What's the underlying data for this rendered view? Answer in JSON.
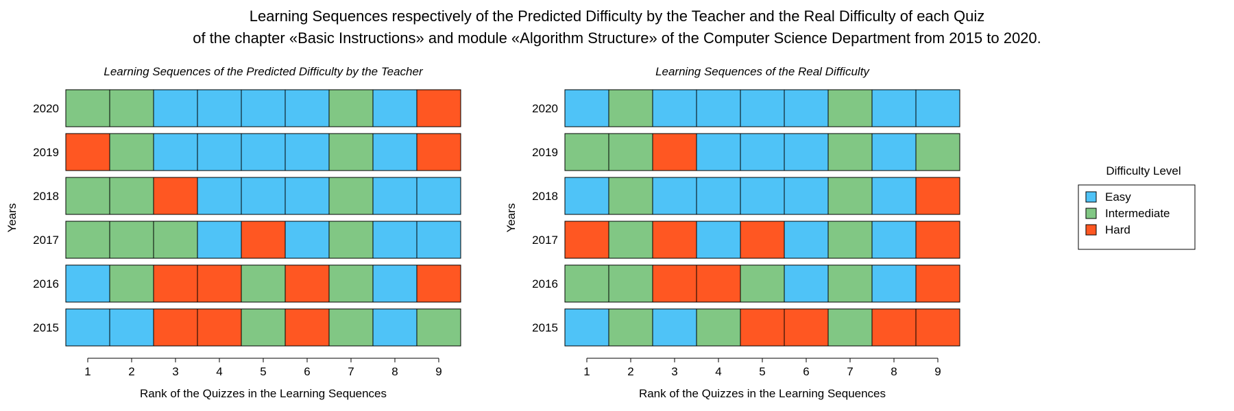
{
  "figure_title": [
    "Learning Sequences respectively of the Predicted Difficulty by the Teacher and the Real Difficulty of each Quiz",
    "of the chapter «Basic Instructions» and module «Algorithm Structure» of the Computer Science Department from 2015 to 2020."
  ],
  "legend": {
    "title": "Difficulty Level",
    "items": [
      {
        "label": "Easy",
        "color": "#4FC3F7"
      },
      {
        "label": "Intermediate",
        "color": "#81C784"
      },
      {
        "label": "Hard",
        "color": "#FF5722"
      }
    ]
  },
  "chart_data": [
    {
      "type": "heatmap",
      "title": "Learning Sequences of the Predicted Difficulty by the Teacher",
      "xlabel": "Rank of the Quizzes in the Learning Sequences",
      "ylabel": "Years",
      "x": [
        1,
        2,
        3,
        4,
        5,
        6,
        7,
        8,
        9
      ],
      "y": [
        "2020",
        "2019",
        "2018",
        "2017",
        "2016",
        "2015"
      ],
      "values": [
        [
          "Intermediate",
          "Intermediate",
          "Easy",
          "Easy",
          "Easy",
          "Easy",
          "Intermediate",
          "Easy",
          "Hard"
        ],
        [
          "Hard",
          "Intermediate",
          "Easy",
          "Easy",
          "Easy",
          "Easy",
          "Intermediate",
          "Easy",
          "Hard"
        ],
        [
          "Intermediate",
          "Intermediate",
          "Hard",
          "Easy",
          "Easy",
          "Easy",
          "Intermediate",
          "Easy",
          "Easy"
        ],
        [
          "Intermediate",
          "Intermediate",
          "Intermediate",
          "Easy",
          "Hard",
          "Easy",
          "Intermediate",
          "Easy",
          "Easy"
        ],
        [
          "Easy",
          "Intermediate",
          "Hard",
          "Hard",
          "Intermediate",
          "Hard",
          "Intermediate",
          "Easy",
          "Hard"
        ],
        [
          "Easy",
          "Easy",
          "Hard",
          "Hard",
          "Intermediate",
          "Hard",
          "Intermediate",
          "Easy",
          "Intermediate"
        ]
      ]
    },
    {
      "type": "heatmap",
      "title": "Learning Sequences of the Real Difficulty",
      "xlabel": "Rank of the Quizzes in the Learning Sequences",
      "ylabel": "Years",
      "x": [
        1,
        2,
        3,
        4,
        5,
        6,
        7,
        8,
        9
      ],
      "y": [
        "2020",
        "2019",
        "2018",
        "2017",
        "2016",
        "2015"
      ],
      "values": [
        [
          "Easy",
          "Intermediate",
          "Easy",
          "Easy",
          "Easy",
          "Easy",
          "Intermediate",
          "Easy",
          "Easy"
        ],
        [
          "Intermediate",
          "Intermediate",
          "Hard",
          "Easy",
          "Easy",
          "Easy",
          "Intermediate",
          "Easy",
          "Intermediate"
        ],
        [
          "Easy",
          "Intermediate",
          "Easy",
          "Easy",
          "Easy",
          "Easy",
          "Intermediate",
          "Easy",
          "Hard"
        ],
        [
          "Hard",
          "Intermediate",
          "Hard",
          "Easy",
          "Hard",
          "Easy",
          "Intermediate",
          "Easy",
          "Hard"
        ],
        [
          "Intermediate",
          "Intermediate",
          "Hard",
          "Hard",
          "Intermediate",
          "Easy",
          "Intermediate",
          "Easy",
          "Hard"
        ],
        [
          "Easy",
          "Intermediate",
          "Easy",
          "Intermediate",
          "Hard",
          "Hard",
          "Intermediate",
          "Hard",
          "Hard"
        ]
      ]
    }
  ]
}
